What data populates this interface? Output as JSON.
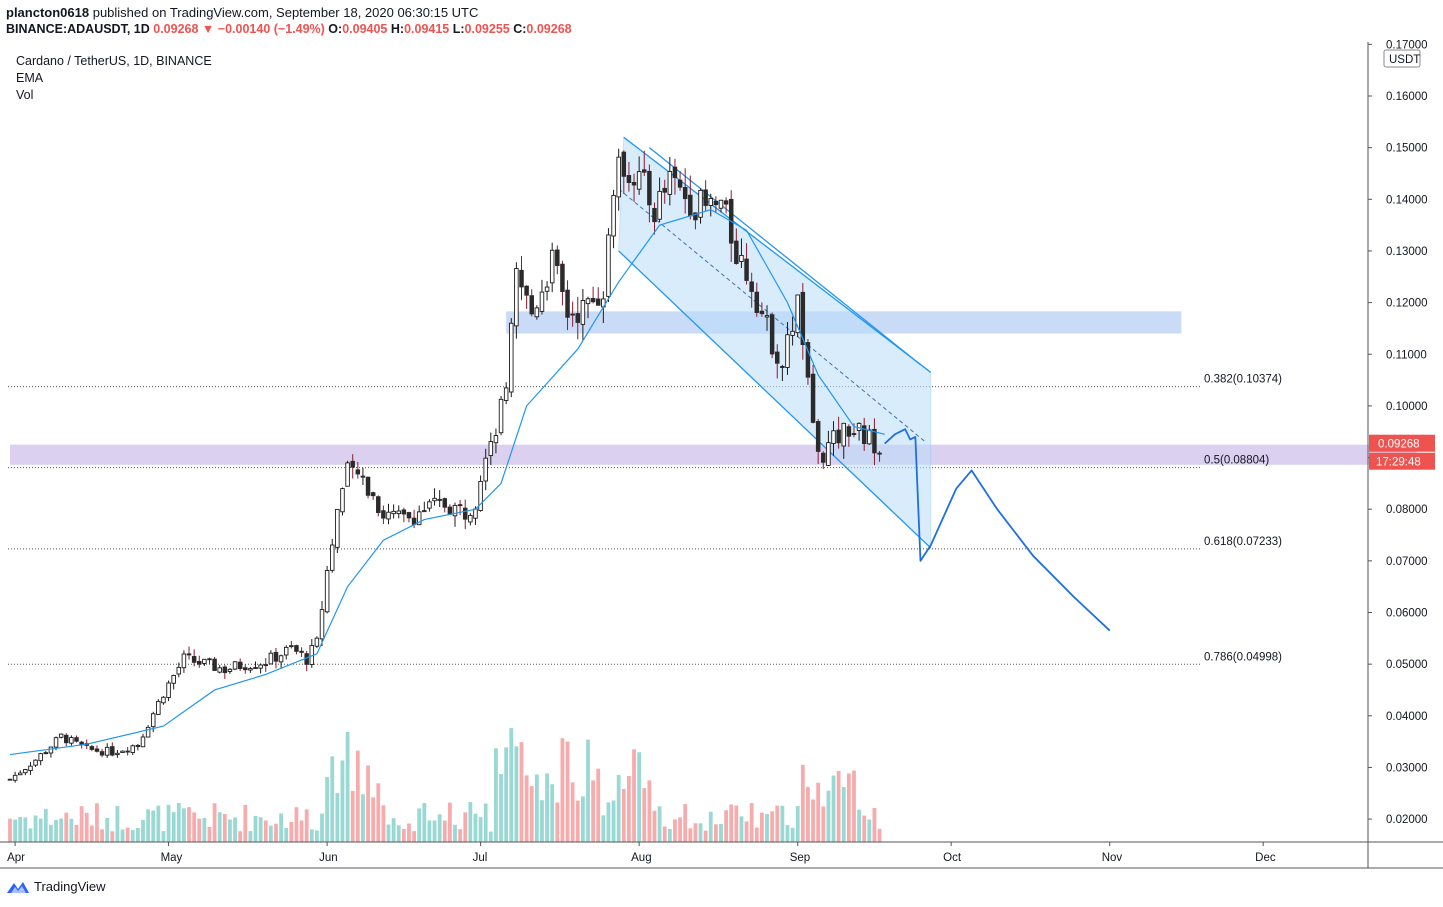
{
  "header": {
    "user": "plancton0618",
    "published": "published on TradingView.com, September 18, 2020 06:30:15 UTC",
    "symbol_line": "BINANCE:ADAUSDT, 1D",
    "price": "0.09268",
    "change": "−0.00140 (−1.49%)",
    "o_label": "O:",
    "o": "0.09405",
    "h_label": "H:",
    "h": "0.09415",
    "l_label": "L:",
    "l": "0.09255",
    "c_label": "C:",
    "c": "0.09268"
  },
  "legend": {
    "title": "Cardano / TetherUS, 1D, BINANCE",
    "ema": "EMA",
    "vol": "Vol"
  },
  "footer": {
    "brand": "TradingView"
  },
  "colors": {
    "up": "#26a69a",
    "down": "#ef5350",
    "vol_up": "#8fd4ce",
    "vol_down": "#f5a3a3",
    "ema": "#2196f3",
    "channel": "#2196f3",
    "zone_blue": "#c7d9f8",
    "zone_purple": "#d9cdee"
  },
  "chart_data": {
    "type": "candlestick",
    "currency": "USDT",
    "y_ticks": [
      "0.17000",
      "0.16000",
      "0.15000",
      "0.14000",
      "0.13000",
      "0.12000",
      "0.11000",
      "0.10000",
      "0.09000",
      "0.08000",
      "0.07000",
      "0.06000",
      "0.05000",
      "0.04000",
      "0.03000",
      "0.02000"
    ],
    "x_ticks": [
      "Apr",
      "May",
      "Jun",
      "Jul",
      "Aug",
      "Sep",
      "Oct",
      "Nov",
      "Dec"
    ],
    "last_price_label": "0.09268",
    "countdown_label": "17:29:48",
    "fib_levels": [
      {
        "label": "0.382(0.10374)",
        "value": 0.10374
      },
      {
        "label": "0.5(0.08804)",
        "value": 0.08804
      },
      {
        "label": "0.618(0.07233)",
        "value": 0.07233
      },
      {
        "label": "0.786(0.04998)",
        "value": 0.04998
      }
    ],
    "zones": [
      {
        "name": "resistance",
        "from": 0.114,
        "to": 0.1183,
        "start": "2020-07-06",
        "end": "2020-11-15"
      },
      {
        "name": "support",
        "from": 0.0886,
        "to": 0.0925,
        "start": "2020-03-31",
        "end": "2020-12-31"
      }
    ],
    "close_path": [
      [
        "2020-03-31",
        0.0277
      ],
      [
        "2020-04-05",
        0.0315
      ],
      [
        "2020-04-10",
        0.036
      ],
      [
        "2020-04-15",
        0.0335
      ],
      [
        "2020-04-20",
        0.033
      ],
      [
        "2020-04-25",
        0.0345
      ],
      [
        "2020-04-30",
        0.0445
      ],
      [
        "2020-05-04",
        0.051
      ],
      [
        "2020-05-08",
        0.05
      ],
      [
        "2020-05-12",
        0.049
      ],
      [
        "2020-05-16",
        0.05
      ],
      [
        "2020-05-20",
        0.0505
      ],
      [
        "2020-05-25",
        0.053
      ],
      [
        "2020-05-28",
        0.051
      ],
      [
        "2020-05-30",
        0.054
      ],
      [
        "2020-06-01",
        0.068
      ],
      [
        "2020-06-03",
        0.08
      ],
      [
        "2020-06-05",
        0.087
      ],
      [
        "2020-06-08",
        0.086
      ],
      [
        "2020-06-12",
        0.079
      ],
      [
        "2020-06-16",
        0.078
      ],
      [
        "2020-06-20",
        0.08
      ],
      [
        "2020-06-24",
        0.081
      ],
      [
        "2020-06-28",
        0.0795
      ],
      [
        "2020-06-30",
        0.082
      ],
      [
        "2020-07-02",
        0.092
      ],
      [
        "2020-07-04",
        0.096
      ],
      [
        "2020-07-06",
        0.102
      ],
      [
        "2020-07-08",
        0.125
      ],
      [
        "2020-07-11",
        0.118
      ],
      [
        "2020-07-15",
        0.128
      ],
      [
        "2020-07-18",
        0.118
      ],
      [
        "2020-07-22",
        0.119
      ],
      [
        "2020-07-25",
        0.123
      ],
      [
        "2020-07-27",
        0.143
      ],
      [
        "2020-07-29",
        0.147
      ],
      [
        "2020-08-01",
        0.144
      ],
      [
        "2020-08-04",
        0.138
      ],
      [
        "2020-08-07",
        0.143
      ],
      [
        "2020-08-11",
        0.14
      ],
      [
        "2020-08-14",
        0.138
      ],
      [
        "2020-08-17",
        0.139
      ],
      [
        "2020-08-20",
        0.13
      ],
      [
        "2020-08-23",
        0.124
      ],
      [
        "2020-08-26",
        0.115
      ],
      [
        "2020-08-29",
        0.108
      ],
      [
        "2020-09-01",
        0.12
      ],
      [
        "2020-09-03",
        0.104
      ],
      [
        "2020-09-05",
        0.09
      ],
      [
        "2020-09-08",
        0.093
      ],
      [
        "2020-09-11",
        0.096
      ],
      [
        "2020-09-14",
        0.094
      ],
      [
        "2020-09-17",
        0.0927
      ]
    ],
    "projection": [
      [
        "2020-09-18",
        0.0927
      ],
      [
        "2020-09-20",
        0.0945
      ],
      [
        "2020-09-22",
        0.0955
      ],
      [
        "2020-09-23",
        0.0935
      ],
      [
        "2020-09-24",
        0.094
      ],
      [
        "2020-09-25",
        0.07
      ],
      [
        "2020-09-27",
        0.073
      ],
      [
        "2020-10-02",
        0.084
      ],
      [
        "2020-10-05",
        0.0875
      ],
      [
        "2020-10-10",
        0.08
      ],
      [
        "2020-10-17",
        0.071
      ],
      [
        "2020-10-25",
        0.063
      ],
      [
        "2020-11-01",
        0.0565
      ]
    ],
    "channel": {
      "upper_outer": [
        [
          "2020-07-29",
          0.152
        ],
        [
          "2020-09-27",
          0.1065
        ]
      ],
      "upper_inner": [
        [
          "2020-08-03",
          0.15
        ],
        [
          "2020-09-25",
          0.108
        ]
      ],
      "lower": [
        [
          "2020-07-28",
          0.13
        ],
        [
          "2020-09-27",
          0.0725
        ]
      ],
      "mid": [
        [
          "2020-07-28",
          0.142
        ],
        [
          "2020-09-26",
          0.093
        ]
      ]
    },
    "ema_path": [
      [
        "2020-03-31",
        0.0325
      ],
      [
        "2020-04-15",
        0.0345
      ],
      [
        "2020-04-30",
        0.038
      ],
      [
        "2020-05-10",
        0.045
      ],
      [
        "2020-05-20",
        0.048
      ],
      [
        "2020-05-30",
        0.052
      ],
      [
        "2020-06-05",
        0.065
      ],
      [
        "2020-06-12",
        0.074
      ],
      [
        "2020-06-20",
        0.078
      ],
      [
        "2020-06-30",
        0.08
      ],
      [
        "2020-07-05",
        0.085
      ],
      [
        "2020-07-10",
        0.1
      ],
      [
        "2020-07-20",
        0.111
      ],
      [
        "2020-07-28",
        0.124
      ],
      [
        "2020-08-05",
        0.135
      ],
      [
        "2020-08-15",
        0.138
      ],
      [
        "2020-08-22",
        0.134
      ],
      [
        "2020-08-30",
        0.12
      ],
      [
        "2020-09-05",
        0.106
      ],
      [
        "2020-09-12",
        0.096
      ],
      [
        "2020-09-18",
        0.0945
      ]
    ]
  }
}
